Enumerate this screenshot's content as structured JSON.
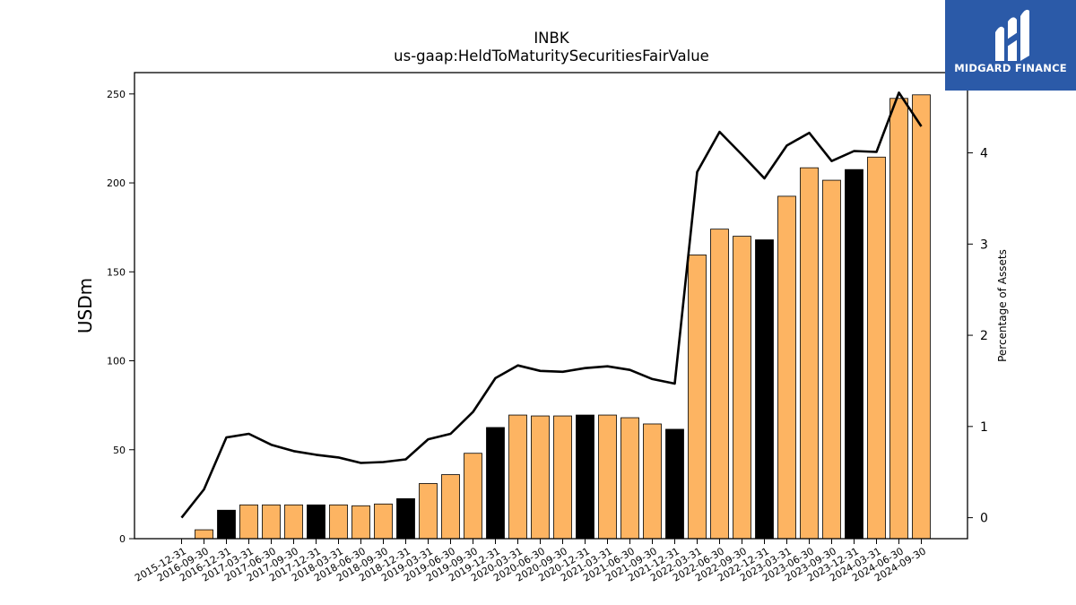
{
  "logo": {
    "text": "MIDGARD FINANCE",
    "icon": "midgard-m-logo-icon"
  },
  "chart_data": {
    "type": "bar",
    "title": "INBK",
    "subtitle": "us-gaap:HeldToMaturitySecuritiesFairValue",
    "ylabel": "USDm",
    "y2label": "Percentage of Assets",
    "ylim": [
      0,
      262
    ],
    "y2lim": [
      -0.23,
      4.88
    ],
    "yticks": [
      0,
      50,
      100,
      150,
      200,
      250
    ],
    "y2ticks": [
      0,
      1,
      2,
      3,
      4
    ],
    "grid": false,
    "colors": {
      "q4_bar": "#000000",
      "other_bar": "#fdb462",
      "line": "#000000"
    },
    "categories": [
      "2015-12-31",
      "2016-09-30",
      "2016-12-31",
      "2017-03-31",
      "2017-06-30",
      "2017-09-30",
      "2017-12-31",
      "2018-03-31",
      "2018-06-30",
      "2018-09-30",
      "2018-12-31",
      "2019-03-31",
      "2019-06-30",
      "2019-09-30",
      "2019-12-31",
      "2020-03-31",
      "2020-06-30",
      "2020-09-30",
      "2020-12-31",
      "2021-03-31",
      "2021-06-30",
      "2021-09-30",
      "2021-12-31",
      "2022-03-31",
      "2022-06-30",
      "2022-09-30",
      "2022-12-31",
      "2023-03-31",
      "2023-06-30",
      "2023-09-30",
      "2023-12-31",
      "2024-03-31",
      "2024-06-30",
      "2024-09-30"
    ],
    "series": [
      {
        "type": "bar",
        "values": [
          0,
          5,
          16,
          19,
          19,
          19,
          19,
          19,
          18.5,
          19.5,
          22.5,
          31,
          36,
          48,
          62.5,
          69.5,
          69,
          69,
          69.5,
          69.5,
          68,
          64.5,
          61.5,
          159.5,
          174,
          170,
          168,
          192.5,
          208.5,
          201.5,
          207.5,
          214.5,
          247.5,
          249.5
        ]
      },
      {
        "type": "line",
        "axis": "y2",
        "values": [
          0,
          0.31,
          0.88,
          0.92,
          0.8,
          0.73,
          0.69,
          0.66,
          0.6,
          0.61,
          0.64,
          0.86,
          0.92,
          1.16,
          1.53,
          1.67,
          1.61,
          1.6,
          1.64,
          1.66,
          1.62,
          1.52,
          1.47,
          3.79,
          4.23,
          3.98,
          3.72,
          4.08,
          4.22,
          3.91,
          4.02,
          4.01,
          4.66,
          4.29
        ]
      }
    ]
  }
}
